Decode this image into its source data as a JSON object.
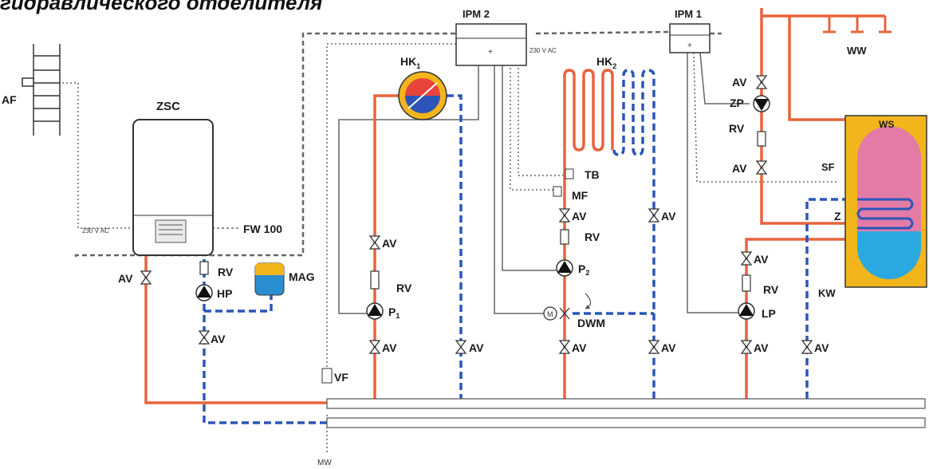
{
  "heading": "гидравлического отделителя",
  "colors": {
    "supply": "#e8643c",
    "return": "#2b56b8",
    "control": "#666666",
    "boiler_body": "#ffffff",
    "tank_outer": "#f2b51c",
    "tank_top": "#e27ba6",
    "tank_bottom": "#2aa9e0",
    "mag": "#2a8fd0",
    "mag_top": "#f2b51c"
  },
  "labels": {
    "af": "AF",
    "zsc": "ZSC",
    "voltage_boiler": "230 V AC",
    "voltage_ipm2": "230 V AC",
    "fw": "FW 100",
    "av": "AV",
    "rv": "RV",
    "hp": "HP",
    "mag": "MAG",
    "hk1": "HK",
    "hk1_sub": "1",
    "hk2": "HK",
    "hk2_sub": "2",
    "ipm2": "IPM 2",
    "ipm1": "IPM 1",
    "tb": "TB",
    "mf": "MF",
    "p1": "P",
    "p1_sub": "1",
    "p2": "P",
    "p2_sub": "2",
    "dwm": "DWM",
    "m": "M",
    "vf": "VF",
    "mw": "MW",
    "ww": "WW",
    "ws": "WS",
    "zp": "ZP",
    "sf": "SF",
    "z": "Z",
    "kw": "KW",
    "lp": "LP"
  }
}
